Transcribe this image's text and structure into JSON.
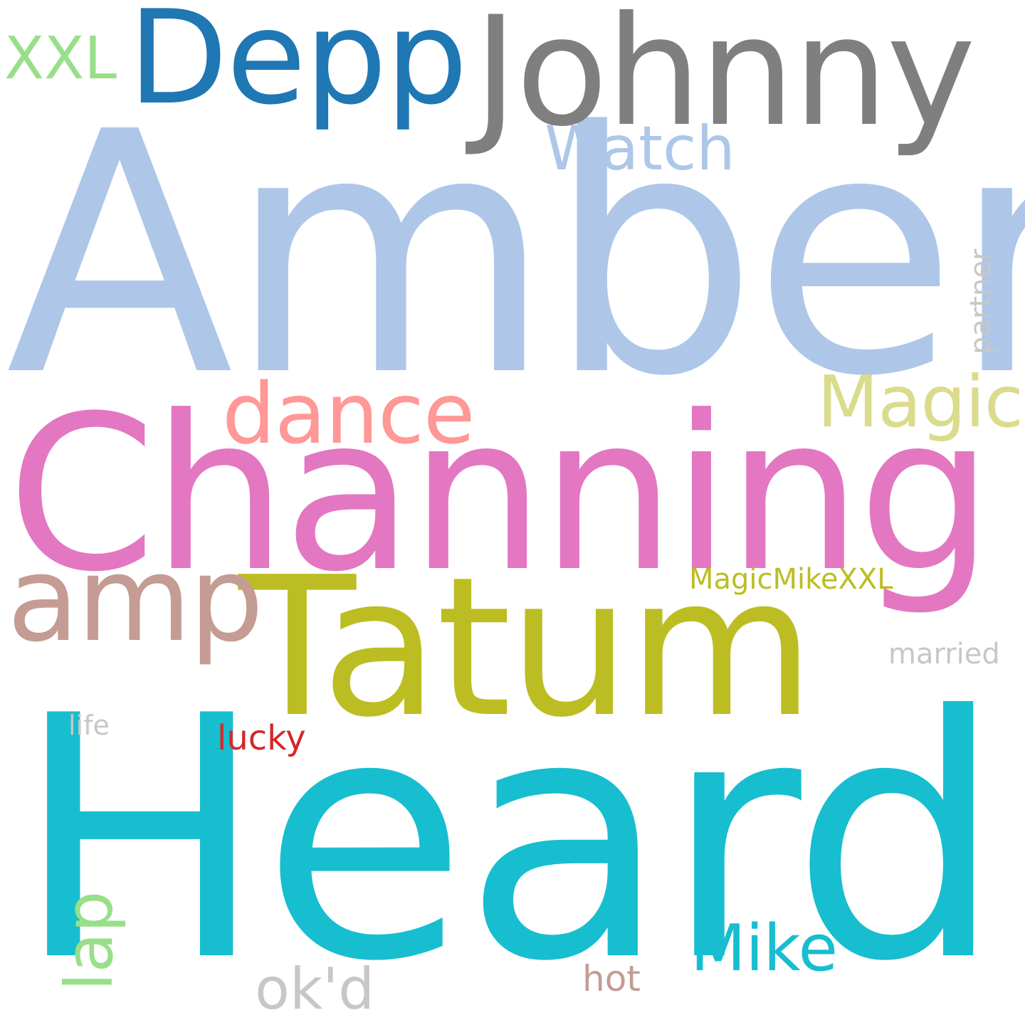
{
  "words": [
    {
      "key": "amber",
      "text": "Amber",
      "color": "#aec7e8"
    },
    {
      "key": "heard",
      "text": "Heard",
      "color": "#17becf"
    },
    {
      "key": "channing",
      "text": "Channing",
      "color": "#e377c2"
    },
    {
      "key": "tatum",
      "text": "Tatum",
      "color": "#bcbd22"
    },
    {
      "key": "johnny",
      "text": "Johnny",
      "color": "#7f7f7f"
    },
    {
      "key": "depp",
      "text": "Depp",
      "color": "#1f77b4"
    },
    {
      "key": "amp",
      "text": "amp",
      "color": "#c49c94"
    },
    {
      "key": "dance",
      "text": "dance",
      "color": "#ff9896"
    },
    {
      "key": "magic",
      "text": "Magic",
      "color": "#dbdb8d"
    },
    {
      "key": "watch",
      "text": "Watch",
      "color": "#aec7e8"
    },
    {
      "key": "xxl",
      "text": "XXL",
      "color": "#98df8a"
    },
    {
      "key": "mike",
      "text": "Mike",
      "color": "#17becf"
    },
    {
      "key": "lap",
      "text": "lap",
      "color": "#98df8a"
    },
    {
      "key": "okd",
      "text": "ok'd",
      "color": "#c7c7c7"
    },
    {
      "key": "magicmikexxl",
      "text": "MagicMikeXXL",
      "color": "#bcbd22"
    },
    {
      "key": "married",
      "text": "married",
      "color": "#c7c7c7"
    },
    {
      "key": "partner",
      "text": "partner",
      "color": "#c7c7c7"
    },
    {
      "key": "life",
      "text": "life",
      "color": "#c7c7c7"
    },
    {
      "key": "lucky",
      "text": "lucky",
      "color": "#d62728"
    },
    {
      "key": "hot",
      "text": "hot",
      "color": "#c49c94"
    }
  ]
}
